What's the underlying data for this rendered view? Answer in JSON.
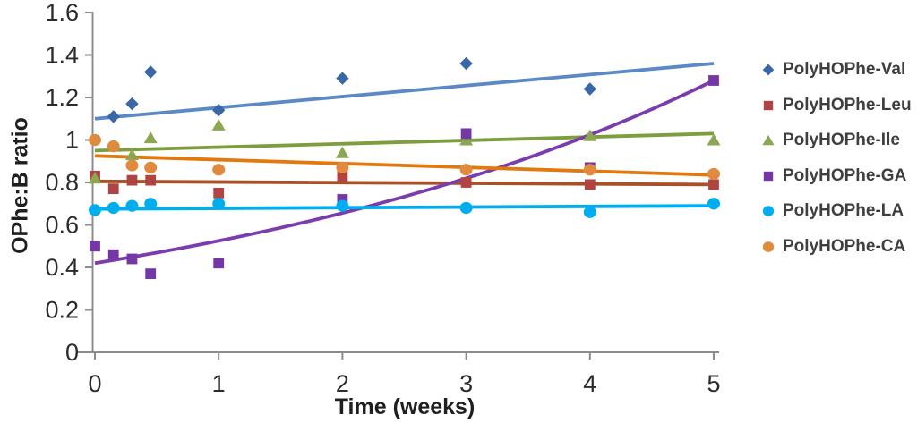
{
  "chart_data": {
    "type": "scatter",
    "title": "",
    "xlabel": "Time (weeks)",
    "ylabel": "OPhe:B ratio",
    "xlim": [
      0,
      5
    ],
    "ylim": [
      0,
      1.6
    ],
    "xticks": [
      "0",
      "1",
      "2",
      "3",
      "4",
      "5"
    ],
    "yticks": [
      "0",
      "0.2",
      "0.4",
      "0.6",
      "0.8",
      "1",
      "1.2",
      "1.4",
      "1.6"
    ],
    "grid": false,
    "legend_position": "right",
    "axis_color": "#8c8c8c",
    "tick_label_color": "#2b2b2b",
    "legend_text_color": "#3f3f3f",
    "series": [
      {
        "name": "PolyHOPhe-Val",
        "marker": "diamond",
        "color": "#3a67a6",
        "line_color": "#5b88c7",
        "points": [
          [
            0.15,
            1.11
          ],
          [
            0.3,
            1.17
          ],
          [
            0.45,
            1.32
          ],
          [
            1,
            1.14
          ],
          [
            2,
            1.29
          ],
          [
            3,
            1.36
          ],
          [
            4,
            1.24
          ]
        ],
        "trend": {
          "type": "linear",
          "start": [
            0,
            1.1
          ],
          "end": [
            5,
            1.36
          ]
        }
      },
      {
        "name": "PolyHOPhe-Leu",
        "marker": "square",
        "color": "#b04442",
        "line_color": "#a95026",
        "points": [
          [
            0,
            0.83
          ],
          [
            0.15,
            0.77
          ],
          [
            0.3,
            0.81
          ],
          [
            0.45,
            0.81
          ],
          [
            1,
            0.75
          ],
          [
            2,
            0.83
          ],
          [
            3,
            0.8
          ],
          [
            4,
            0.79
          ],
          [
            5,
            0.79
          ]
        ],
        "trend": {
          "type": "linear",
          "start": [
            0,
            0.805
          ],
          "end": [
            5,
            0.79
          ]
        }
      },
      {
        "name": "PolyHOPhe-Ile",
        "marker": "triangle",
        "color": "#8ca751",
        "line_color": "#7e9d3f",
        "points": [
          [
            0,
            0.82
          ],
          [
            0.3,
            0.93
          ],
          [
            0.45,
            1.01
          ],
          [
            1,
            1.07
          ],
          [
            2,
            0.94
          ],
          [
            3,
            1.0
          ],
          [
            4,
            1.02
          ],
          [
            5,
            1.0
          ]
        ],
        "trend": {
          "type": "linear",
          "start": [
            0,
            0.95
          ],
          "end": [
            5,
            1.03
          ]
        }
      },
      {
        "name": "PolyHOPhe-GA",
        "marker": "square",
        "color": "#7536a6",
        "line_color": "#7b3cad",
        "points": [
          [
            0,
            0.5
          ],
          [
            0.15,
            0.46
          ],
          [
            0.3,
            0.44
          ],
          [
            0.45,
            0.37
          ],
          [
            1,
            0.42
          ],
          [
            2,
            0.72
          ],
          [
            3,
            1.03
          ],
          [
            4,
            0.87
          ],
          [
            5,
            1.28
          ]
        ],
        "trend": {
          "type": "exponential",
          "start": [
            0,
            0.42
          ],
          "end": [
            5,
            1.28
          ]
        }
      },
      {
        "name": "PolyHOPhe-LA",
        "marker": "circle",
        "color": "#00aeef",
        "line_color": "#00aeef",
        "points": [
          [
            0,
            0.67
          ],
          [
            0.15,
            0.68
          ],
          [
            0.3,
            0.69
          ],
          [
            0.45,
            0.7
          ],
          [
            1,
            0.7
          ],
          [
            2,
            0.69
          ],
          [
            3,
            0.68
          ],
          [
            4,
            0.66
          ],
          [
            5,
            0.7
          ]
        ],
        "trend": {
          "type": "linear",
          "start": [
            0,
            0.675
          ],
          "end": [
            5,
            0.69
          ]
        }
      },
      {
        "name": "PolyHOPhe-CA",
        "marker": "circle",
        "color": "#e08a3e",
        "line_color": "#e2790f",
        "points": [
          [
            0,
            1.0
          ],
          [
            0.15,
            0.97
          ],
          [
            0.3,
            0.88
          ],
          [
            0.45,
            0.87
          ],
          [
            1,
            0.86
          ],
          [
            2,
            0.87
          ],
          [
            3,
            0.86
          ],
          [
            4,
            0.86
          ],
          [
            5,
            0.84
          ]
        ],
        "trend": {
          "type": "linear",
          "start": [
            0,
            0.925
          ],
          "end": [
            5,
            0.835
          ]
        }
      }
    ]
  }
}
